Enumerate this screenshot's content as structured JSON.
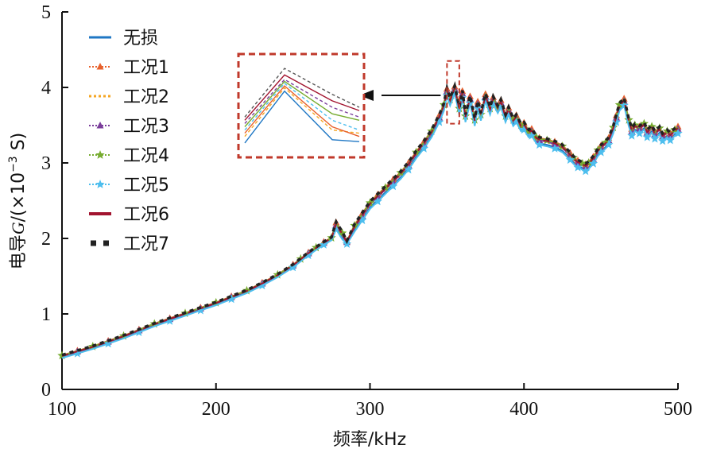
{
  "chart_data": {
    "type": "line",
    "title": "",
    "xlabel": "频率/kHz",
    "ylabel_parts": [
      "电导",
      "G",
      "/(×10",
      "−3",
      " S)"
    ],
    "xlim": [
      100,
      500
    ],
    "ylim": [
      0,
      5
    ],
    "xticks": [
      100,
      200,
      300,
      400,
      500
    ],
    "yticks": [
      0,
      1,
      2,
      3,
      4,
      5
    ],
    "legend_position": "top-left",
    "base_curve": {
      "x": [
        100,
        110,
        120,
        130,
        140,
        150,
        160,
        170,
        180,
        190,
        200,
        210,
        220,
        230,
        240,
        250,
        255,
        260,
        265,
        270,
        275,
        278,
        282,
        285,
        290,
        295,
        300,
        305,
        310,
        315,
        320,
        325,
        330,
        335,
        340,
        345,
        348,
        350,
        352,
        355,
        358,
        360,
        362,
        365,
        368,
        370,
        372,
        375,
        378,
        380,
        383,
        385,
        388,
        390,
        393,
        395,
        398,
        400,
        403,
        405,
        408,
        410,
        415,
        420,
        425,
        430,
        432,
        435,
        438,
        440,
        442,
        445,
        448,
        450,
        453,
        455,
        458,
        460,
        462,
        465,
        468,
        470,
        472,
        475,
        478,
        480,
        483,
        485,
        488,
        490,
        493,
        495,
        498,
        500
      ],
      "y": [
        0.44,
        0.5,
        0.56,
        0.63,
        0.7,
        0.78,
        0.86,
        0.93,
        1.0,
        1.07,
        1.14,
        1.22,
        1.3,
        1.4,
        1.51,
        1.64,
        1.72,
        1.8,
        1.87,
        1.94,
        2.0,
        2.18,
        2.05,
        1.95,
        2.15,
        2.3,
        2.45,
        2.55,
        2.65,
        2.75,
        2.85,
        2.97,
        3.12,
        3.25,
        3.4,
        3.6,
        3.75,
        3.95,
        3.82,
        3.98,
        3.7,
        3.92,
        3.6,
        3.85,
        3.55,
        3.78,
        3.62,
        3.88,
        3.7,
        3.84,
        3.72,
        3.8,
        3.6,
        3.7,
        3.55,
        3.6,
        3.48,
        3.5,
        3.4,
        3.42,
        3.32,
        3.3,
        3.28,
        3.25,
        3.2,
        3.1,
        3.05,
        3.0,
        2.97,
        2.95,
        2.98,
        3.05,
        3.15,
        3.2,
        3.25,
        3.3,
        3.45,
        3.6,
        3.75,
        3.82,
        3.55,
        3.42,
        3.48,
        3.45,
        3.5,
        3.4,
        3.46,
        3.38,
        3.44,
        3.35,
        3.4,
        3.36,
        3.42,
        3.45
      ]
    },
    "series": [
      {
        "name": "无损",
        "color": "#1f77c4",
        "marker": "line",
        "offset": -0.04
      },
      {
        "name": "工况1",
        "color": "#e8612c",
        "marker": "triangle",
        "offset": 0.03
      },
      {
        "name": "工况2",
        "color": "#f5a623",
        "marker": "dot",
        "offset": -0.01
      },
      {
        "name": "工况3",
        "color": "#7a3d9a",
        "marker": "triangle",
        "offset": 0.0
      },
      {
        "name": "工况4",
        "color": "#77ac30",
        "marker": "star",
        "offset": 0.02
      },
      {
        "name": "工况5",
        "color": "#4dbeee",
        "marker": "star",
        "offset": -0.06
      },
      {
        "name": "工况6",
        "color": "#a2142f",
        "marker": "dash",
        "offset": 0.01
      },
      {
        "name": "工况7",
        "color": "#222222",
        "marker": "square",
        "offset": 0.04
      }
    ],
    "inset": {
      "peaks": [
        {
          "color": "#1f77c4",
          "values": [
            3.2,
            4.0,
            3.25,
            3.22
          ]
        },
        {
          "color": "#f5a623",
          "values": [
            3.3,
            4.05,
            3.4,
            3.35
          ]
        },
        {
          "color": "#e8612c",
          "values": [
            3.35,
            4.08,
            3.45,
            3.3
          ]
        },
        {
          "color": "#4dbeee",
          "values": [
            3.4,
            4.12,
            3.55,
            3.4
          ]
        },
        {
          "color": "#77ac30",
          "values": [
            3.45,
            4.15,
            3.65,
            3.55
          ]
        },
        {
          "color": "#7a3d9a",
          "values": [
            3.5,
            4.18,
            3.75,
            3.6
          ]
        },
        {
          "color": "#a2142f",
          "values": [
            3.55,
            4.25,
            3.85,
            3.7
          ]
        },
        {
          "color": "#555555",
          "values": [
            3.6,
            4.35,
            3.95,
            3.75
          ]
        }
      ]
    }
  }
}
